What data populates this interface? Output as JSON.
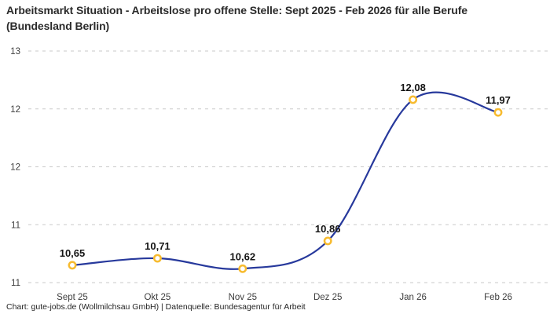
{
  "title": "Arbeitsmarkt Situation - Arbeitslose pro offene Stelle: Sept 2025 - Feb 2026 für alle Berufe (Bundesland Berlin)",
  "footer": "Chart: gute-jobs.de (Wollmilchsau GmbH) | Datenquelle: Bundesagentur für Arbeit",
  "colors": {
    "line": "#27399c",
    "marker_ring": "#f7bb2f",
    "marker_fill": "#ffffff",
    "gridline": "#c9c9c9",
    "title_text": "#2b2b2b",
    "point_label_text": "#141414",
    "tick_text": "#3d3d3d"
  },
  "chart_data": {
    "type": "line",
    "title": "Arbeitsmarkt Situation - Arbeitslose pro offene Stelle: Sept 2025 - Feb 2026 für alle Berufe (Bundesland Berlin)",
    "categories": [
      "Sept 25",
      "Okt 25",
      "Nov 25",
      "Dez 25",
      "Jan 26",
      "Feb 26"
    ],
    "values": [
      10.65,
      10.71,
      10.62,
      10.86,
      12.08,
      11.97
    ],
    "point_labels": [
      "10,65",
      "10,71",
      "10,62",
      "10,86",
      "12,08",
      "11,97"
    ],
    "xlabel": "",
    "ylabel": "",
    "ylim": [
      10.5,
      12.5
    ],
    "y_gridlines": [
      {
        "value": 12.5,
        "label": "13"
      },
      {
        "value": 12.0,
        "label": "12"
      },
      {
        "value": 11.5,
        "label": "12"
      },
      {
        "value": 11.0,
        "label": "11"
      },
      {
        "value": 10.5,
        "label": "11"
      }
    ],
    "grid": "dashed-horizontal",
    "legend": "none",
    "line_style": "smooth"
  }
}
